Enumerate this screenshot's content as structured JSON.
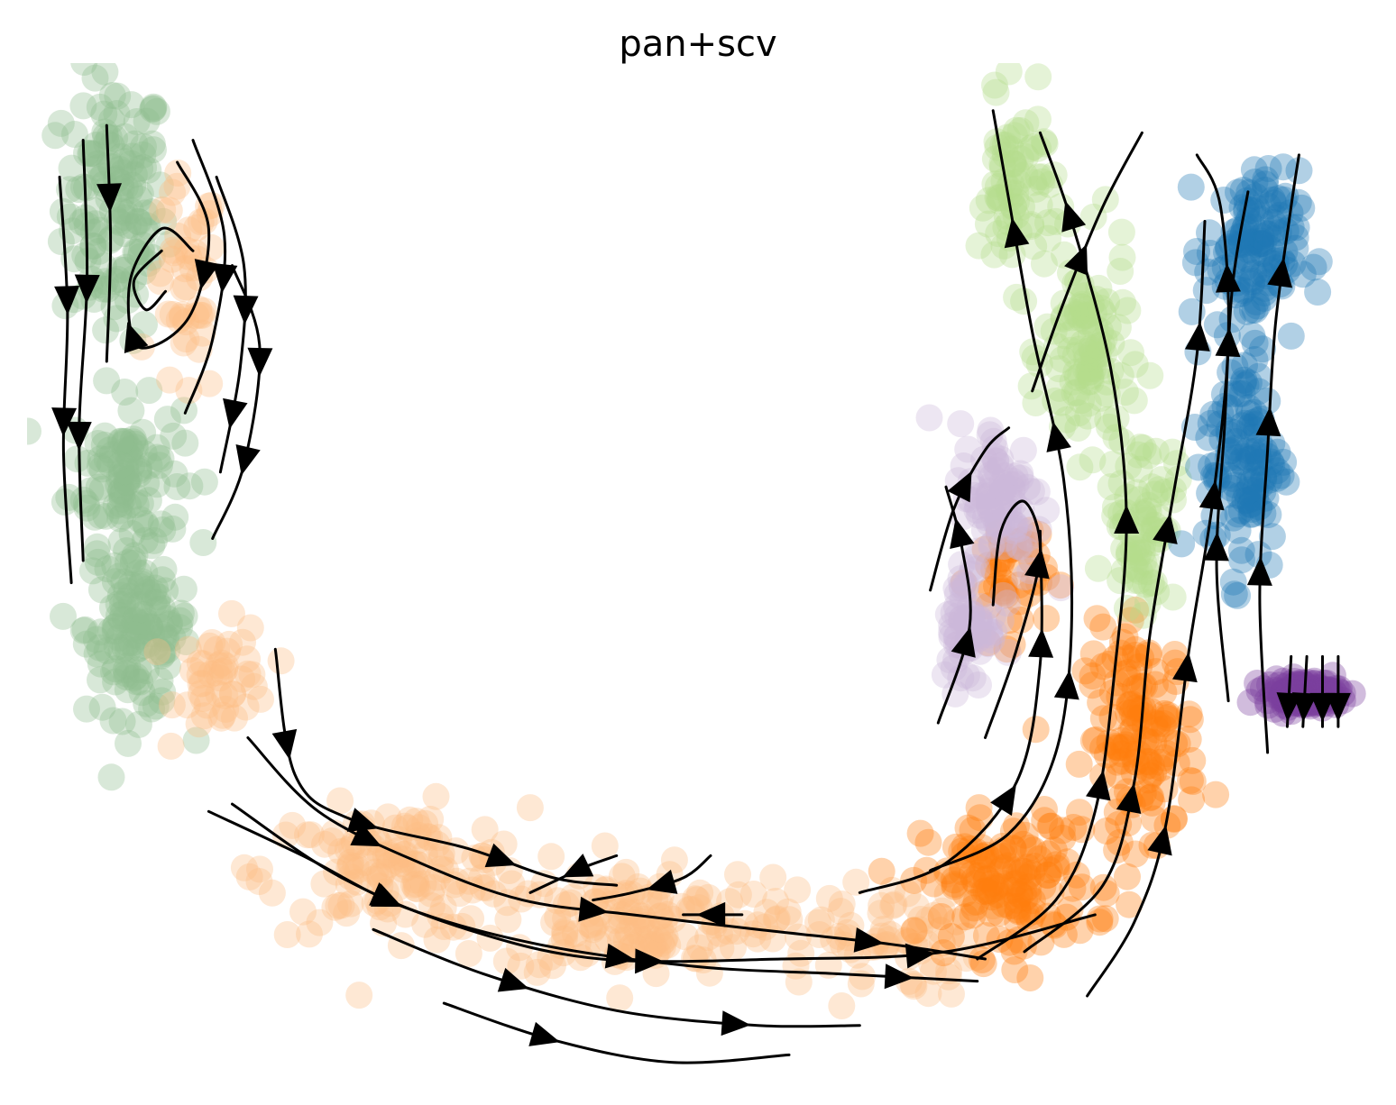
{
  "chart_data": {
    "type": "scatter",
    "subtype": "velocity-embedding-stream",
    "title": "pan+scv",
    "xlabel": "",
    "ylabel": "",
    "axes_visible": false,
    "grid": false,
    "legend": "none",
    "point_alpha": 0.35,
    "series": [
      {
        "color": "#8fbc8f",
        "regions": [
          {
            "center": [
              -8.2,
              6.6
            ],
            "spread": [
              0.55,
              1.5
            ],
            "weight": 0.9
          },
          {
            "center": [
              -8.05,
              3.0
            ],
            "spread": [
              0.6,
              0.8
            ],
            "weight": 0.6
          },
          {
            "center": [
              -7.9,
              0.9
            ],
            "spread": [
              0.55,
              1.0
            ],
            "weight": 0.9
          }
        ]
      },
      {
        "color": "#fdbe85",
        "regions": [
          {
            "center": [
              -7.3,
              5.4
            ],
            "spread": [
              0.35,
              1.3
            ],
            "weight": 0.3
          },
          {
            "center": [
              -6.8,
              0.2
            ],
            "spread": [
              0.5,
              0.6
            ],
            "weight": 0.3
          },
          {
            "center": [
              -4.6,
              -2.4
            ],
            "spread": [
              1.4,
              0.7
            ],
            "weight": 0.9
          },
          {
            "center": [
              -1.6,
              -3.1
            ],
            "spread": [
              1.4,
              0.6
            ],
            "weight": 0.9
          },
          {
            "center": [
              1.4,
              -3.3
            ],
            "spread": [
              1.2,
              0.7
            ],
            "weight": 0.5
          }
        ]
      },
      {
        "color": "#ff7f0e",
        "regions": [
          {
            "center": [
              3.2,
              -2.6
            ],
            "spread": [
              0.9,
              0.8
            ],
            "weight": 0.9
          },
          {
            "center": [
              4.9,
              -0.6
            ],
            "spread": [
              0.6,
              1.2
            ],
            "weight": 0.9
          },
          {
            "center": [
              3.2,
              1.6
            ],
            "spread": [
              0.4,
              0.7
            ],
            "weight": 0.3
          }
        ]
      },
      {
        "color": "#b5de8c",
        "regions": [
          {
            "center": [
              3.3,
              6.8
            ],
            "spread": [
              0.4,
              1.0
            ],
            "weight": 0.5
          },
          {
            "center": [
              4.2,
              4.6
            ],
            "spread": [
              0.45,
              1.2
            ],
            "weight": 0.7
          },
          {
            "center": [
              4.9,
              2.4
            ],
            "spread": [
              0.35,
              1.0
            ],
            "weight": 0.5
          }
        ]
      },
      {
        "color": "#1f77b4",
        "regions": [
          {
            "center": [
              6.3,
              6.0
            ],
            "spread": [
              0.5,
              0.9
            ],
            "weight": 0.8
          },
          {
            "center": [
              6.2,
              3.2
            ],
            "spread": [
              0.4,
              1.3
            ],
            "weight": 0.8
          }
        ]
      },
      {
        "color": "#cbb7db",
        "regions": [
          {
            "center": [
              3.1,
              2.6
            ],
            "spread": [
              0.45,
              0.9
            ],
            "weight": 0.6
          },
          {
            "center": [
              2.7,
              0.9
            ],
            "spread": [
              0.3,
              0.7
            ],
            "weight": 0.4
          }
        ]
      },
      {
        "color": "#7b3f9e",
        "regions": [
          {
            "center": [
              6.95,
              0.0
            ],
            "spread": [
              0.4,
              0.15
            ],
            "weight": 1.0
          }
        ]
      }
    ],
    "streamlines": [
      {
        "points": [
          [
            -8.9,
            7.0
          ],
          [
            -8.8,
            5.2
          ],
          [
            -8.85,
            3.3
          ],
          [
            -8.75,
            1.5
          ]
        ],
        "arrows_at": [
          0.3,
          0.6
        ]
      },
      {
        "points": [
          [
            -8.6,
            7.5
          ],
          [
            -8.55,
            5.6
          ],
          [
            -8.65,
            3.6
          ],
          [
            -8.6,
            1.8
          ]
        ],
        "arrows_at": [
          0.35,
          0.7
        ]
      },
      {
        "points": [
          [
            -8.3,
            7.7
          ],
          [
            -8.25,
            6.1
          ],
          [
            -8.3,
            4.5
          ]
        ],
        "arrows_at": [
          0.3
        ]
      },
      {
        "points": [
          [
            -7.4,
            7.2
          ],
          [
            -7.0,
            6.3
          ],
          [
            -7.25,
            5.1
          ],
          [
            -7.9,
            4.7
          ],
          [
            -8.0,
            5.6
          ],
          [
            -7.6,
            6.3
          ],
          [
            -7.2,
            6.0
          ]
        ],
        "arrows_at": [
          0.3,
          0.6
        ]
      },
      {
        "points": [
          [
            -7.2,
            7.5
          ],
          [
            -6.8,
            6.2
          ],
          [
            -6.95,
            4.8
          ],
          [
            -7.3,
            3.8
          ]
        ],
        "arrows_at": [
          0.5
        ]
      },
      {
        "points": [
          [
            -6.9,
            7.0
          ],
          [
            -6.55,
            5.8
          ],
          [
            -6.6,
            4.4
          ],
          [
            -6.85,
            3.0
          ]
        ],
        "arrows_at": [
          0.45,
          0.8
        ]
      },
      {
        "points": [
          [
            -6.7,
            5.8
          ],
          [
            -6.35,
            4.7
          ],
          [
            -6.55,
            3.1
          ],
          [
            -6.95,
            2.1
          ]
        ],
        "arrows_at": [
          0.35,
          0.7
        ]
      },
      {
        "points": [
          [
            -7.6,
            6.0
          ],
          [
            -7.95,
            5.6
          ],
          [
            -7.8,
            5.2
          ],
          [
            -7.55,
            5.45
          ]
        ],
        "arrows_at": []
      },
      {
        "points": [
          [
            -6.15,
            0.6
          ],
          [
            -5.9,
            -1.1
          ],
          [
            -5.2,
            -1.7
          ],
          [
            -3.7,
            -2.1
          ],
          [
            -2.6,
            -2.5
          ],
          [
            -1.8,
            -2.6
          ]
        ],
        "arrows_at": [
          0.2,
          0.45,
          0.75
        ]
      },
      {
        "points": [
          [
            -6.5,
            -0.6
          ],
          [
            -5.6,
            -1.6
          ],
          [
            -4.3,
            -2.3
          ],
          [
            -3.0,
            -2.8
          ],
          [
            -1.6,
            -3.0
          ],
          [
            0.0,
            -3.2
          ],
          [
            1.7,
            -3.4
          ],
          [
            2.9,
            -3.6
          ]
        ],
        "arrows_at": [
          0.2,
          0.5,
          0.85
        ]
      },
      {
        "points": [
          [
            -7.0,
            -1.6
          ],
          [
            -5.8,
            -2.2
          ],
          [
            -4.5,
            -2.9
          ],
          [
            -2.8,
            -3.4
          ],
          [
            -0.8,
            -3.7
          ],
          [
            1.0,
            -3.8
          ],
          [
            2.8,
            -3.9
          ]
        ],
        "arrows_at": [
          0.25,
          0.55,
          0.9
        ]
      },
      {
        "points": [
          [
            -6.7,
            -1.5
          ],
          [
            -5.3,
            -2.5
          ],
          [
            -3.7,
            -3.2
          ],
          [
            -2.0,
            -3.6
          ],
          [
            0.3,
            -3.6
          ],
          [
            2.4,
            -3.5
          ],
          [
            4.3,
            -3.0
          ]
        ],
        "arrows_at": [
          0.2,
          0.5,
          0.8
        ]
      },
      {
        "points": [
          [
            -4.9,
            -3.2
          ],
          [
            -3.5,
            -3.8
          ],
          [
            -1.8,
            -4.3
          ],
          [
            0.0,
            -4.5
          ],
          [
            1.3,
            -4.5
          ]
        ],
        "arrows_at": [
          0.3,
          0.75
        ]
      },
      {
        "points": [
          [
            -4.0,
            -4.2
          ],
          [
            -2.6,
            -4.7
          ],
          [
            -1.1,
            -5.0
          ],
          [
            0.4,
            -4.9
          ]
        ],
        "arrows_at": [
          0.3
        ]
      },
      {
        "points": [
          [
            -1.8,
            -2.2
          ],
          [
            -2.2,
            -2.35
          ],
          [
            -2.5,
            -2.5
          ],
          [
            -2.9,
            -2.7
          ]
        ],
        "arrows_at": [
          0.45
        ]
      },
      {
        "points": [
          [
            -0.6,
            -2.2
          ],
          [
            -0.95,
            -2.5
          ],
          [
            -1.6,
            -2.7
          ],
          [
            -2.1,
            -2.8
          ]
        ],
        "arrows_at": [
          0.45
        ]
      },
      {
        "points": [
          [
            -0.2,
            -3.0
          ],
          [
            -0.95,
            -3.0
          ]
        ],
        "arrows_at": [
          0.5
        ]
      },
      {
        "points": [
          [
            4.2,
            -4.1
          ],
          [
            4.8,
            -3.1
          ],
          [
            5.2,
            -1.8
          ],
          [
            5.5,
            0.6
          ],
          [
            5.8,
            2.6
          ],
          [
            6.0,
            4.8
          ],
          [
            5.9,
            6.6
          ],
          [
            5.6,
            7.3
          ]
        ],
        "arrows_at": [
          0.2,
          0.4,
          0.6,
          0.85
        ]
      },
      {
        "points": [
          [
            3.4,
            -3.5
          ],
          [
            4.4,
            -2.6
          ],
          [
            4.8,
            -1.2
          ],
          [
            5.0,
            0.8
          ],
          [
            5.3,
            2.7
          ],
          [
            5.6,
            4.6
          ],
          [
            5.7,
            6.4
          ]
        ],
        "arrows_at": [
          0.25,
          0.6,
          0.85
        ]
      },
      {
        "points": [
          [
            2.8,
            -3.6
          ],
          [
            3.8,
            -2.8
          ],
          [
            4.3,
            -1.6
          ],
          [
            4.55,
            0.3
          ],
          [
            4.7,
            2.4
          ],
          [
            4.5,
            4.4
          ],
          [
            4.0,
            6.4
          ],
          [
            3.6,
            7.6
          ]
        ],
        "arrows_at": [
          0.25,
          0.55,
          0.9
        ]
      },
      {
        "points": [
          [
            2.2,
            -2.4
          ],
          [
            3.2,
            -1.9
          ],
          [
            3.8,
            -0.8
          ],
          [
            4.0,
            0.9
          ],
          [
            3.9,
            2.9
          ],
          [
            3.5,
            4.9
          ],
          [
            3.2,
            6.7
          ],
          [
            3.0,
            7.9
          ]
        ],
        "arrows_at": [
          0.3,
          0.6,
          0.85
        ]
      },
      {
        "points": [
          [
            1.3,
            -2.7
          ],
          [
            2.4,
            -2.3
          ],
          [
            3.3,
            -1.2
          ],
          [
            3.6,
            0.4
          ],
          [
            3.6,
            2.2
          ]
        ],
        "arrows_at": [
          0.4,
          0.75
        ]
      },
      {
        "points": [
          [
            3.5,
            4.1
          ],
          [
            3.9,
            5.3
          ],
          [
            4.4,
            6.6
          ],
          [
            4.9,
            7.6
          ]
        ],
        "arrows_at": [
          0.5
        ]
      },
      {
        "points": [
          [
            2.9,
            -0.6
          ],
          [
            3.3,
            0.6
          ],
          [
            3.6,
            1.9
          ],
          [
            3.4,
            2.6
          ],
          [
            3.1,
            2.2
          ],
          [
            3.0,
            1.2
          ]
        ],
        "arrows_at": [
          0.5
        ]
      },
      {
        "points": [
          [
            2.3,
            -0.4
          ],
          [
            2.7,
            0.9
          ],
          [
            2.6,
            2.0
          ],
          [
            2.4,
            2.8
          ]
        ],
        "arrows_at": [
          0.35,
          0.8
        ]
      },
      {
        "points": [
          [
            2.2,
            1.4
          ],
          [
            2.5,
            2.5
          ],
          [
            2.9,
            3.3
          ],
          [
            3.2,
            3.6
          ]
        ],
        "arrows_at": [
          0.6
        ]
      },
      {
        "points": [
          [
            6.5,
            -0.8
          ],
          [
            6.4,
            1.3
          ],
          [
            6.5,
            3.3
          ],
          [
            6.6,
            5.0
          ],
          [
            6.8,
            6.6
          ],
          [
            6.9,
            7.3
          ]
        ],
        "arrows_at": [
          0.3,
          0.55,
          0.8
        ]
      },
      {
        "points": [
          [
            6.0,
            -0.1
          ],
          [
            5.85,
            1.7
          ],
          [
            5.95,
            3.6
          ],
          [
            6.05,
            5.5
          ],
          [
            6.25,
            6.8
          ]
        ],
        "arrows_at": [
          0.3,
          0.7
        ]
      },
      {
        "points": [
          [
            6.8,
            0.5
          ],
          [
            6.75,
            -0.45
          ]
        ],
        "arrows_at": [
          0.7
        ]
      },
      {
        "points": [
          [
            7.0,
            0.5
          ],
          [
            6.95,
            -0.45
          ]
        ],
        "arrows_at": [
          0.7
        ]
      },
      {
        "points": [
          [
            7.2,
            0.5
          ],
          [
            7.2,
            -0.45
          ]
        ],
        "arrows_at": [
          0.7
        ]
      },
      {
        "points": [
          [
            7.4,
            0.5
          ],
          [
            7.4,
            -0.45
          ]
        ],
        "arrows_at": [
          0.7
        ]
      }
    ]
  }
}
